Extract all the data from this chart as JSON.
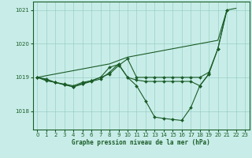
{
  "background_color": "#c8ede8",
  "grid_color": "#90c8be",
  "line_color": "#1a5c28",
  "xlabel": "Graphe pression niveau de la mer (hPa)",
  "ylim": [
    1017.45,
    1021.25
  ],
  "yticks": [
    1018,
    1019,
    1020,
    1021
  ],
  "xlim": [
    -0.5,
    23.5
  ],
  "s1_x": [
    0,
    1,
    2,
    3,
    4,
    5,
    6,
    7,
    8,
    9,
    10,
    11,
    12,
    13,
    14,
    15,
    16,
    17,
    18,
    19,
    20,
    21,
    22
  ],
  "s1_y": [
    1019.0,
    1019.05,
    1019.1,
    1019.15,
    1019.2,
    1019.25,
    1019.3,
    1019.35,
    1019.4,
    1019.5,
    1019.6,
    1019.65,
    1019.7,
    1019.75,
    1019.8,
    1019.85,
    1019.9,
    1019.95,
    1020.0,
    1020.05,
    1020.1,
    1021.0,
    1021.05
  ],
  "s2_x": [
    0,
    1,
    2,
    3,
    4,
    5,
    6,
    7,
    8,
    9,
    10,
    11,
    12,
    13,
    14,
    15,
    16,
    17,
    18,
    19,
    20,
    21
  ],
  "s2_y": [
    1019.0,
    1018.95,
    1018.85,
    1018.8,
    1018.75,
    1018.85,
    1018.9,
    1019.0,
    1019.1,
    1019.35,
    1019.55,
    1019.0,
    1019.0,
    1019.0,
    1019.0,
    1019.0,
    1019.0,
    1019.0,
    1019.0,
    1019.15,
    1019.85,
    1021.0
  ],
  "s3_x": [
    0,
    1,
    2,
    3,
    4,
    5,
    6,
    7,
    8,
    9,
    10,
    11,
    12,
    13,
    14,
    15,
    16,
    17,
    18,
    19,
    20,
    21
  ],
  "s3_y": [
    1019.0,
    1018.9,
    1018.85,
    1018.78,
    1018.72,
    1018.8,
    1018.88,
    1018.95,
    1019.15,
    1019.4,
    1019.0,
    1018.75,
    1018.3,
    1017.82,
    1017.78,
    1017.75,
    1017.72,
    1018.1,
    1018.75,
    1019.1,
    1019.85,
    1021.0
  ],
  "s4_x": [
    0,
    2,
    3,
    4,
    5,
    6,
    7,
    8,
    9,
    10,
    11,
    12,
    13,
    14,
    15,
    16,
    17,
    18,
    19
  ],
  "s4_y": [
    1019.0,
    1018.85,
    1018.78,
    1018.72,
    1018.82,
    1018.9,
    1019.0,
    1019.3,
    1019.38,
    1019.0,
    1018.92,
    1018.88,
    1018.88,
    1018.88,
    1018.88,
    1018.88,
    1018.88,
    1018.75,
    1019.1
  ]
}
